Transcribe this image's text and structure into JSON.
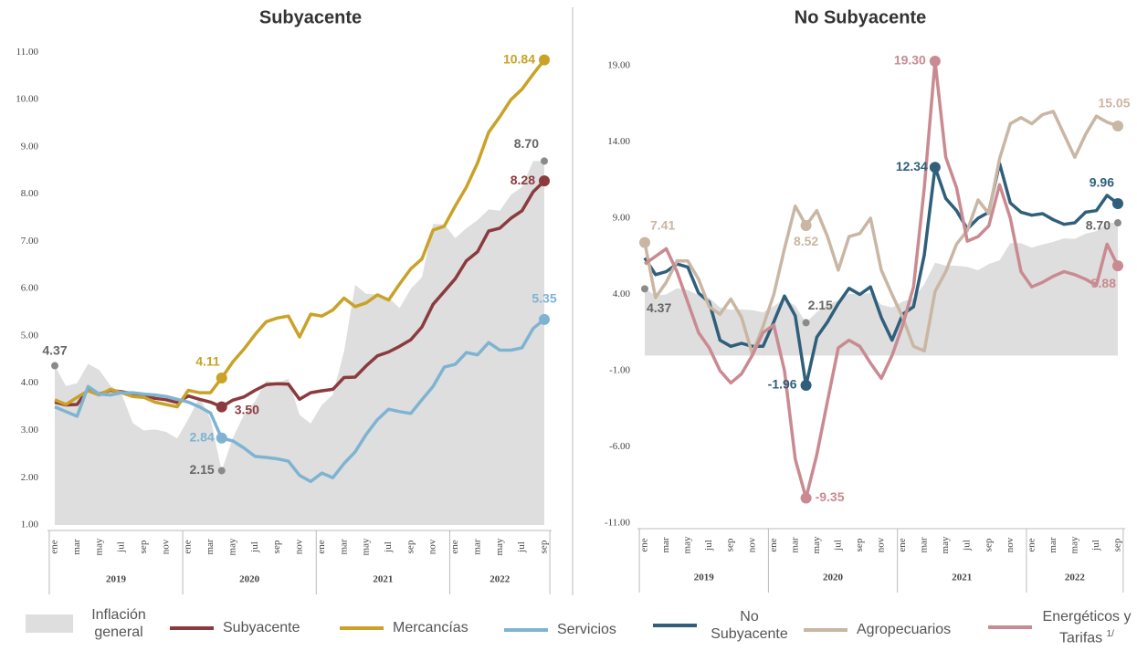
{
  "chart_data": [
    {
      "type": "line",
      "title": "Subyacente",
      "categories": [
        "ene",
        null,
        "mar",
        null,
        "may",
        null,
        "jul",
        null,
        "sep",
        null,
        "nov",
        null,
        "ene",
        null,
        "mar",
        null,
        "may",
        null,
        "jul",
        null,
        "sep",
        null,
        "nov",
        null,
        "ene",
        null,
        "mar",
        null,
        "may",
        null,
        "jul",
        null,
        "sep",
        null,
        "nov",
        null,
        "ene",
        null,
        "mar",
        null,
        "may",
        null,
        "jul",
        null,
        "sep"
      ],
      "groups": [
        "2019",
        "2020",
        "2021",
        "2022"
      ],
      "ylim": [
        1,
        11.2
      ],
      "yticks": [
        {
          "value": 1,
          "label": "1.00"
        },
        {
          "value": 2,
          "label": "2.00"
        },
        {
          "value": 3,
          "label": "3.00"
        },
        {
          "value": 4,
          "label": "4.00"
        },
        {
          "value": 5,
          "label": "5.00"
        },
        {
          "value": 6,
          "label": "6.00"
        },
        {
          "value": 7,
          "label": "7.00"
        },
        {
          "value": 8,
          "label": "8.00"
        },
        {
          "value": 9,
          "label": "9.00"
        },
        {
          "value": 10,
          "label": "10.00"
        },
        {
          "value": 11,
          "label": "11.00"
        }
      ],
      "series": [
        {
          "name": "Inflación general",
          "type": "area",
          "color": "#dedede",
          "label_color": "#8a8a8a",
          "values": [
            4.37,
            3.94,
            4.0,
            4.41,
            4.28,
            3.95,
            3.78,
            3.16,
            3.0,
            3.02,
            2.97,
            2.83,
            3.24,
            3.7,
            3.25,
            2.15,
            2.84,
            3.33,
            3.62,
            4.05,
            4.01,
            4.09,
            3.33,
            3.15,
            3.54,
            3.76,
            4.67,
            6.08,
            5.89,
            5.88,
            5.81,
            5.59,
            6.0,
            6.24,
            7.37,
            7.36,
            7.07,
            7.28,
            7.45,
            7.68,
            7.65,
            7.99,
            8.15,
            8.7,
            8.7
          ],
          "value_labels": [
            "4.37",
            null,
            null,
            null,
            null,
            null,
            null,
            null,
            null,
            null,
            null,
            null,
            null,
            null,
            null,
            "2.15",
            null,
            null,
            null,
            null,
            null,
            null,
            null,
            null,
            null,
            null,
            null,
            null,
            null,
            null,
            null,
            null,
            null,
            null,
            null,
            null,
            null,
            null,
            null,
            null,
            null,
            null,
            null,
            null,
            "8.70"
          ]
        },
        {
          "name": "Subyacente",
          "type": "line",
          "color": "#8b3b3d",
          "values": [
            3.6,
            3.54,
            3.55,
            3.87,
            3.77,
            3.85,
            3.82,
            3.78,
            3.75,
            3.68,
            3.65,
            3.59,
            3.73,
            3.66,
            3.6,
            3.5,
            3.64,
            3.71,
            3.85,
            3.97,
            3.99,
            3.98,
            3.66,
            3.8,
            3.84,
            3.87,
            4.12,
            4.13,
            4.37,
            4.58,
            4.66,
            4.78,
            4.92,
            5.19,
            5.67,
            5.94,
            6.21,
            6.59,
            6.78,
            7.22,
            7.28,
            7.49,
            7.65,
            8.05,
            8.28
          ],
          "value_labels": [
            null,
            null,
            null,
            null,
            null,
            null,
            null,
            null,
            null,
            null,
            null,
            null,
            null,
            null,
            null,
            "3.50",
            null,
            null,
            null,
            null,
            null,
            null,
            null,
            null,
            null,
            null,
            null,
            null,
            null,
            null,
            null,
            null,
            null,
            null,
            null,
            null,
            null,
            null,
            null,
            null,
            null,
            null,
            null,
            null,
            "8.28"
          ]
        },
        {
          "name": "Mercancías",
          "type": "line",
          "color": "#c9a227",
          "values": [
            3.65,
            3.55,
            3.7,
            3.84,
            3.75,
            3.87,
            3.8,
            3.72,
            3.7,
            3.6,
            3.55,
            3.5,
            3.85,
            3.8,
            3.8,
            4.11,
            4.45,
            4.72,
            5.03,
            5.3,
            5.38,
            5.42,
            4.98,
            5.46,
            5.42,
            5.55,
            5.8,
            5.62,
            5.7,
            5.87,
            5.76,
            6.1,
            6.42,
            6.63,
            7.24,
            7.32,
            7.75,
            8.15,
            8.66,
            9.31,
            9.64,
            10.0,
            10.22,
            10.54,
            10.84
          ],
          "value_labels": [
            null,
            null,
            null,
            null,
            null,
            null,
            null,
            null,
            null,
            null,
            null,
            null,
            null,
            null,
            null,
            "4.11",
            null,
            null,
            null,
            null,
            null,
            null,
            null,
            null,
            null,
            null,
            null,
            null,
            null,
            null,
            null,
            null,
            null,
            null,
            null,
            null,
            null,
            null,
            null,
            null,
            null,
            null,
            null,
            null,
            "10.84"
          ]
        },
        {
          "name": "Servicios",
          "type": "line",
          "color": "#7fb3d2",
          "values": [
            3.5,
            3.4,
            3.3,
            3.93,
            3.77,
            3.75,
            3.8,
            3.8,
            3.77,
            3.75,
            3.72,
            3.66,
            3.6,
            3.5,
            3.37,
            2.84,
            2.78,
            2.63,
            2.45,
            2.43,
            2.4,
            2.35,
            2.05,
            1.92,
            2.1,
            2.0,
            2.3,
            2.55,
            2.92,
            3.23,
            3.45,
            3.4,
            3.36,
            3.65,
            3.93,
            4.34,
            4.4,
            4.65,
            4.6,
            4.86,
            4.7,
            4.7,
            4.75,
            5.16,
            5.35
          ],
          "value_labels": [
            null,
            null,
            null,
            null,
            null,
            null,
            null,
            null,
            null,
            null,
            null,
            null,
            null,
            null,
            null,
            "2.84",
            null,
            null,
            null,
            null,
            null,
            null,
            null,
            null,
            null,
            null,
            null,
            null,
            null,
            null,
            null,
            null,
            null,
            null,
            null,
            null,
            null,
            null,
            null,
            null,
            null,
            null,
            null,
            null,
            "5.35"
          ]
        }
      ]
    },
    {
      "type": "line",
      "title": "No Subyacente",
      "categories": [
        "ene",
        null,
        "mar",
        null,
        "may",
        null,
        "jul",
        null,
        "sep",
        null,
        "nov",
        null,
        "ene",
        null,
        "mar",
        null,
        "may",
        null,
        "jul",
        null,
        "sep",
        null,
        "nov",
        null,
        "ene",
        null,
        "mar",
        null,
        "may",
        null,
        "jul",
        null,
        "sep",
        null,
        "nov",
        null,
        "ene",
        null,
        "mar",
        null,
        "may",
        null,
        "jul",
        null,
        "sep"
      ],
      "groups": [
        "2019",
        "2020",
        "2021",
        "2022"
      ],
      "ylim": [
        -11,
        20.5
      ],
      "yticks": [
        {
          "value": -11,
          "label": "-11.00"
        },
        {
          "value": -6,
          "label": "-6.00"
        },
        {
          "value": -1,
          "label": "-1.00"
        },
        {
          "value": 4,
          "label": "4.00"
        },
        {
          "value": 9,
          "label": "9.00"
        },
        {
          "value": 14,
          "label": "14.00"
        },
        {
          "value": 19,
          "label": "19.00"
        }
      ],
      "series": [
        {
          "type": "area",
          "color": "#dedede",
          "label_color": "#8a8a8a",
          "values": [
            4.37,
            3.94,
            4.0,
            4.41,
            4.28,
            3.95,
            3.78,
            3.16,
            3.0,
            3.02,
            2.97,
            2.83,
            3.24,
            3.7,
            3.25,
            2.15,
            2.84,
            3.33,
            3.62,
            4.05,
            4.01,
            4.09,
            3.33,
            3.15,
            3.54,
            3.76,
            4.67,
            6.08,
            5.89,
            5.88,
            5.81,
            5.59,
            6.0,
            6.24,
            7.37,
            7.36,
            7.07,
            7.28,
            7.45,
            7.68,
            7.65,
            7.99,
            8.15,
            8.7,
            8.7
          ],
          "value_labels": [
            "4.37",
            null,
            null,
            null,
            null,
            null,
            null,
            null,
            null,
            null,
            null,
            null,
            null,
            null,
            null,
            "2.15",
            null,
            null,
            null,
            null,
            null,
            null,
            null,
            null,
            null,
            null,
            null,
            null,
            null,
            null,
            null,
            null,
            null,
            null,
            null,
            null,
            null,
            null,
            null,
            null,
            null,
            null,
            null,
            null,
            "8.70"
          ]
        },
        {
          "name": "No Subyacente",
          "type": "line",
          "color": "#2f5f7b",
          "values": [
            6.4,
            5.3,
            5.5,
            6.0,
            5.8,
            4.1,
            3.5,
            1.0,
            0.6,
            0.8,
            0.6,
            0.6,
            2.2,
            3.9,
            2.6,
            -1.96,
            1.2,
            2.2,
            3.4,
            4.4,
            4.0,
            4.5,
            2.5,
            1.0,
            2.7,
            3.2,
            6.6,
            12.34,
            10.3,
            9.5,
            8.3,
            9.0,
            9.4,
            12.6,
            10.0,
            9.4,
            9.2,
            9.3,
            8.9,
            8.6,
            8.7,
            9.4,
            9.5,
            10.5,
            9.96
          ],
          "value_labels": [
            null,
            null,
            null,
            null,
            null,
            null,
            null,
            null,
            null,
            null,
            null,
            null,
            null,
            null,
            null,
            "-1.96",
            null,
            null,
            null,
            null,
            null,
            null,
            null,
            null,
            null,
            null,
            null,
            "12.34",
            null,
            null,
            null,
            null,
            null,
            null,
            null,
            null,
            null,
            null,
            null,
            null,
            null,
            null,
            null,
            null,
            "9.96"
          ]
        },
        {
          "name": "Agropecuarios",
          "type": "line",
          "color": "#c9b6a3",
          "values": [
            7.41,
            3.8,
            4.8,
            6.2,
            6.2,
            5.0,
            3.2,
            2.7,
            3.7,
            2.5,
            0.1,
            1.9,
            4.0,
            7.0,
            9.8,
            8.52,
            9.5,
            7.8,
            5.6,
            7.8,
            8.0,
            9.0,
            5.6,
            4.0,
            2.5,
            0.6,
            0.3,
            4.2,
            5.5,
            7.3,
            8.2,
            10.2,
            9.3,
            12.9,
            15.2,
            15.6,
            15.2,
            15.8,
            16.0,
            14.5,
            13.0,
            14.5,
            15.7,
            15.3,
            15.05
          ],
          "value_labels": [
            "7.41",
            null,
            null,
            null,
            null,
            null,
            null,
            null,
            null,
            null,
            null,
            null,
            null,
            null,
            null,
            "8.52",
            null,
            null,
            null,
            null,
            null,
            null,
            null,
            null,
            null,
            null,
            null,
            null,
            null,
            null,
            null,
            null,
            null,
            null,
            null,
            null,
            null,
            null,
            null,
            null,
            null,
            null,
            null,
            null,
            "15.05"
          ]
        },
        {
          "name": "Energéticos y Tarifas",
          "note": "1/",
          "type": "line",
          "color": "#c98a91",
          "values": [
            6.0,
            6.5,
            7.0,
            5.5,
            3.5,
            1.5,
            0.5,
            -1.0,
            -1.8,
            -1.2,
            0.0,
            1.5,
            2.0,
            -1.0,
            -6.8,
            -9.35,
            -6.5,
            -3.0,
            0.5,
            1.0,
            0.6,
            -0.5,
            -1.5,
            0.0,
            2.0,
            4.5,
            11.0,
            19.3,
            13.0,
            11.0,
            7.5,
            7.8,
            8.5,
            11.2,
            9.0,
            5.5,
            4.5,
            4.8,
            5.2,
            5.5,
            5.3,
            5.0,
            4.6,
            7.3,
            5.88
          ],
          "value_labels": [
            null,
            null,
            null,
            null,
            null,
            null,
            null,
            null,
            null,
            null,
            null,
            null,
            null,
            null,
            null,
            "-9.35",
            null,
            null,
            null,
            null,
            null,
            null,
            null,
            null,
            null,
            null,
            null,
            "19.30",
            null,
            null,
            null,
            null,
            null,
            null,
            null,
            null,
            null,
            null,
            null,
            null,
            null,
            null,
            null,
            null,
            "5.88"
          ]
        }
      ]
    }
  ]
}
